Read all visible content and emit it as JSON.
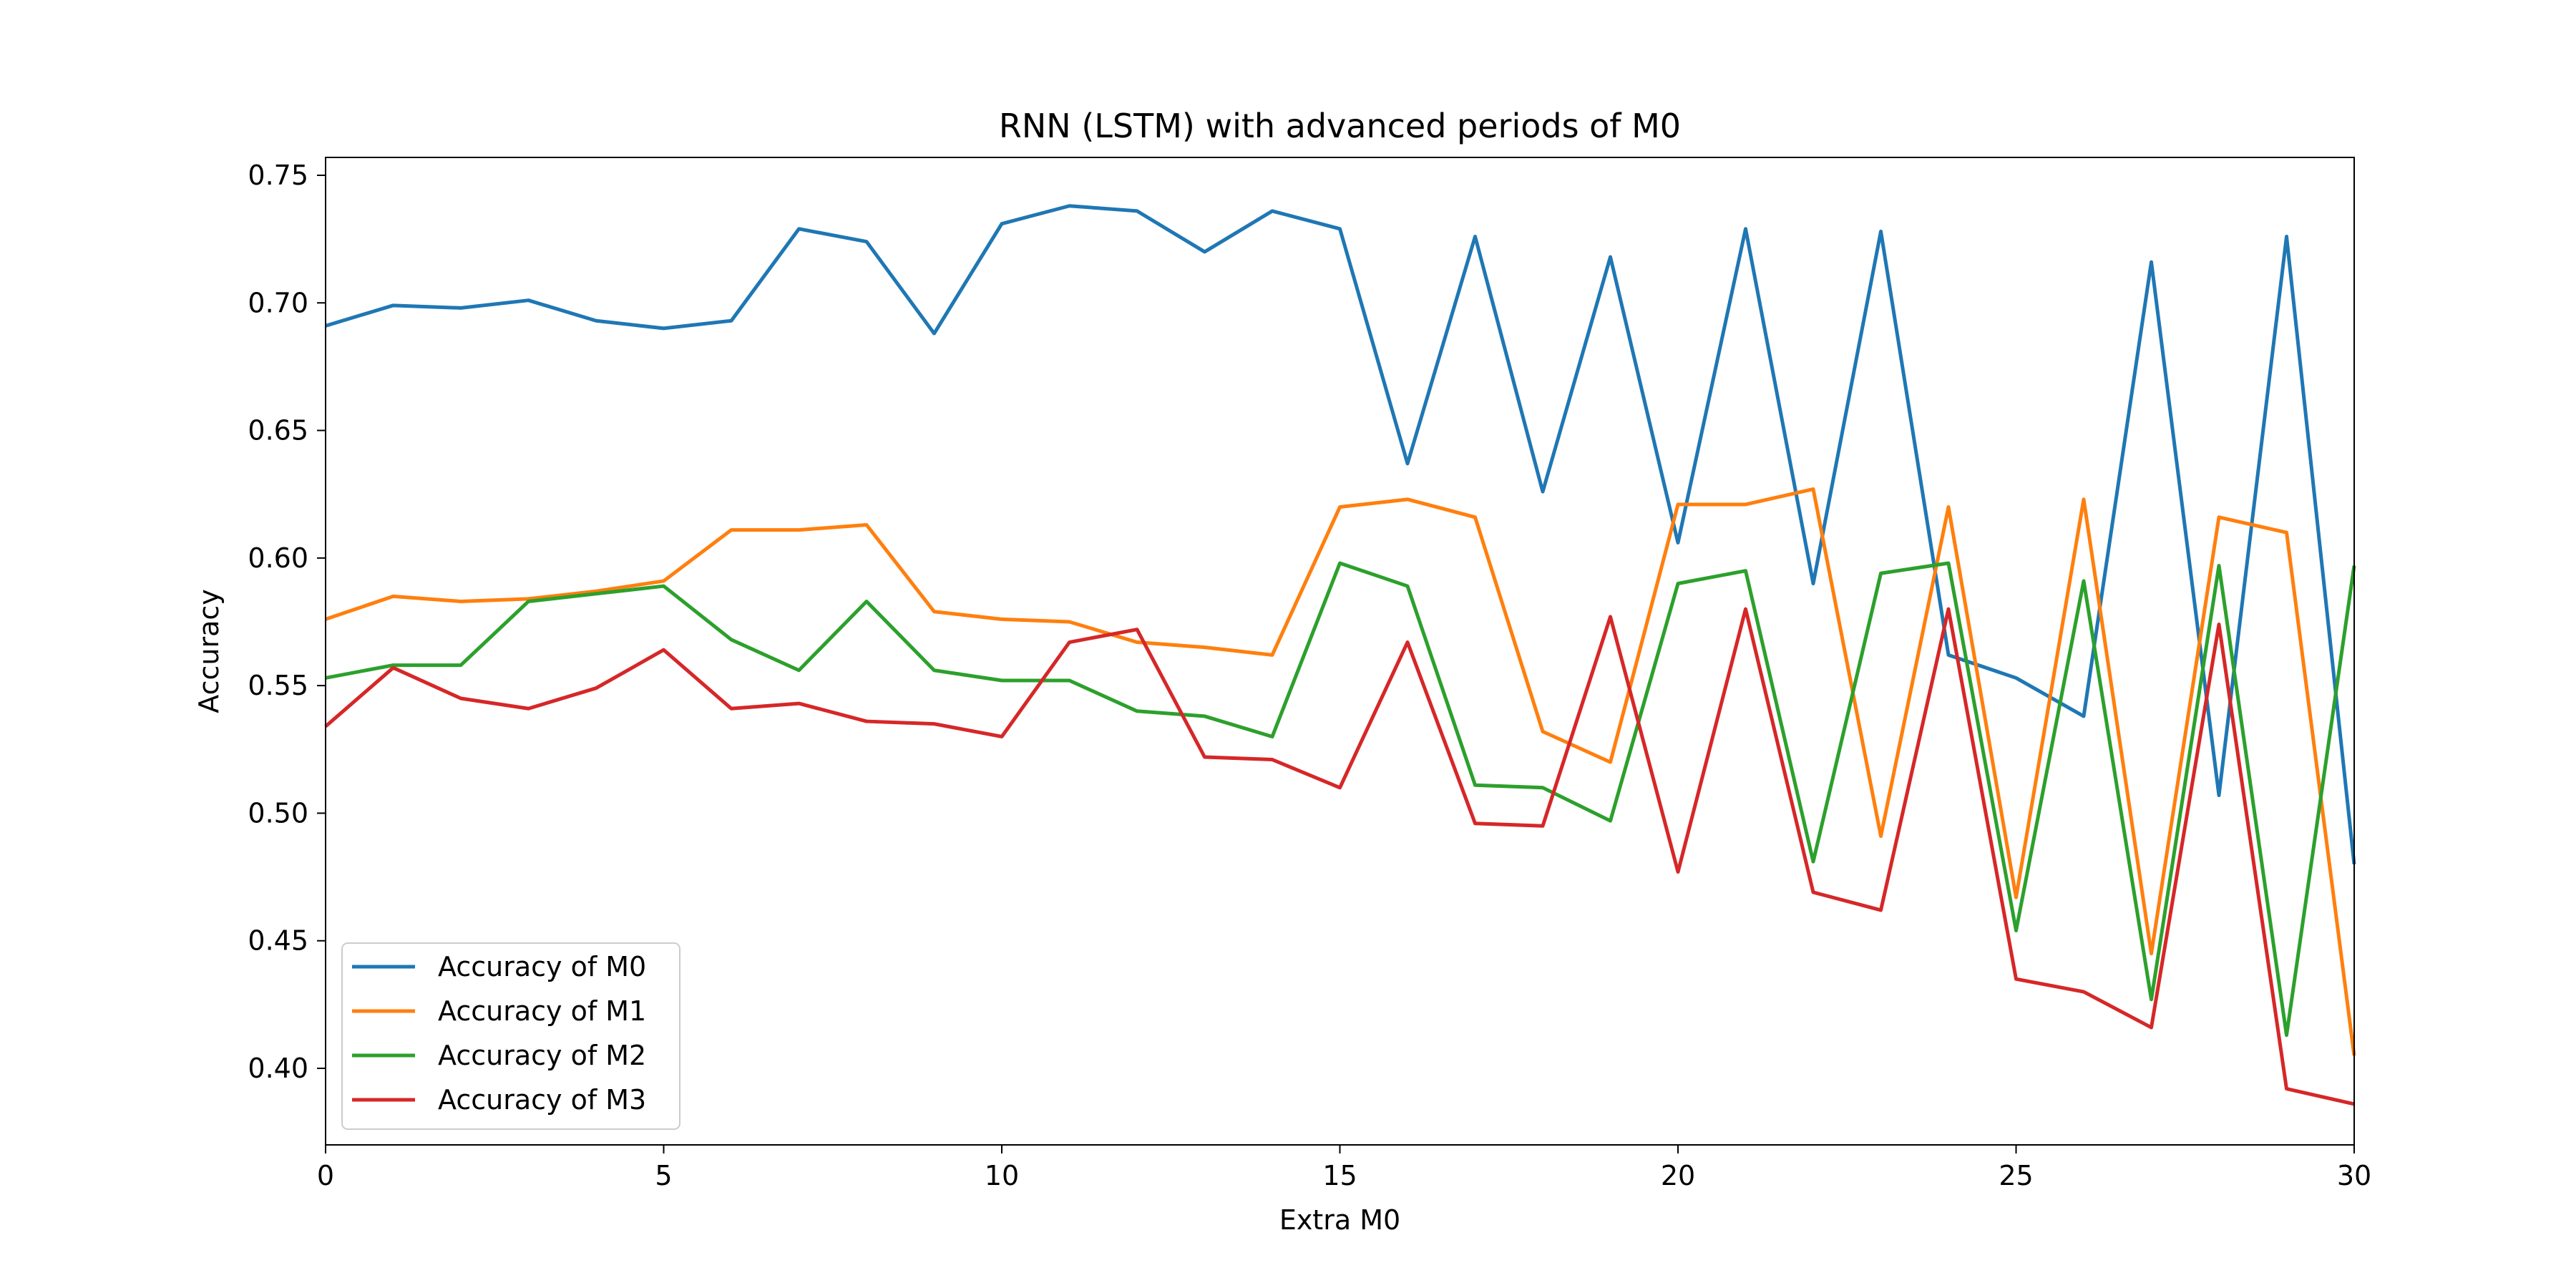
{
  "chart_data": {
    "type": "line",
    "title": "RNN (LSTM) with advanced periods of M0",
    "xlabel": "Extra M0",
    "ylabel": "Accuracy",
    "xlim": [
      0,
      30
    ],
    "ylim": [
      0.37,
      0.757
    ],
    "x_ticks": [
      0,
      5,
      10,
      15,
      20,
      25,
      30
    ],
    "y_ticks": [
      0.4,
      0.45,
      0.5,
      0.55,
      0.6,
      0.65,
      0.7,
      0.75
    ],
    "y_tick_labels": [
      "0.40",
      "0.45",
      "0.50",
      "0.55",
      "0.60",
      "0.65",
      "0.70",
      "0.75"
    ],
    "x_tick_labels": [
      "0",
      "5",
      "10",
      "15",
      "20",
      "25",
      "30"
    ],
    "grid": false,
    "legend_position": "lower-left",
    "x": [
      0,
      1,
      2,
      3,
      4,
      5,
      6,
      7,
      8,
      9,
      10,
      11,
      12,
      13,
      14,
      15,
      16,
      17,
      18,
      19,
      20,
      21,
      22,
      23,
      24,
      25,
      26,
      27,
      28,
      29,
      30
    ],
    "series": [
      {
        "name": "Accuracy of M0",
        "color": "#1f77b4",
        "values": [
          0.691,
          0.699,
          0.698,
          0.701,
          0.693,
          0.69,
          0.693,
          0.729,
          0.724,
          0.688,
          0.731,
          0.738,
          0.736,
          0.72,
          0.736,
          0.729,
          0.637,
          0.726,
          0.626,
          0.718,
          0.606,
          0.729,
          0.59,
          0.728,
          0.562,
          0.553,
          0.538,
          0.716,
          0.507,
          0.726,
          0.48
        ]
      },
      {
        "name": "Accuracy of M1",
        "color": "#ff7f0e",
        "values": [
          0.576,
          0.585,
          0.583,
          0.584,
          0.587,
          0.591,
          0.611,
          0.611,
          0.613,
          0.579,
          0.576,
          0.575,
          0.567,
          0.565,
          0.562,
          0.62,
          0.623,
          0.616,
          0.532,
          0.52,
          0.621,
          0.621,
          0.627,
          0.491,
          0.62,
          0.467,
          0.623,
          0.445,
          0.616,
          0.61,
          0.405
        ]
      },
      {
        "name": "Accuracy of M2",
        "color": "#2ca02c",
        "values": [
          0.553,
          0.558,
          0.558,
          0.583,
          0.586,
          0.589,
          0.568,
          0.556,
          0.583,
          0.556,
          0.552,
          0.552,
          0.54,
          0.538,
          0.53,
          0.598,
          0.589,
          0.511,
          0.51,
          0.497,
          0.59,
          0.595,
          0.481,
          0.594,
          0.598,
          0.454,
          0.591,
          0.427,
          0.597,
          0.413,
          0.597
        ]
      },
      {
        "name": "Accuracy of M3",
        "color": "#d62728",
        "values": [
          0.534,
          0.557,
          0.545,
          0.541,
          0.549,
          0.564,
          0.541,
          0.543,
          0.536,
          0.535,
          0.53,
          0.567,
          0.572,
          0.522,
          0.521,
          0.51,
          0.567,
          0.496,
          0.495,
          0.577,
          0.477,
          0.58,
          0.469,
          0.462,
          0.58,
          0.435,
          0.43,
          0.416,
          0.574,
          0.392,
          0.386
        ]
      }
    ]
  }
}
